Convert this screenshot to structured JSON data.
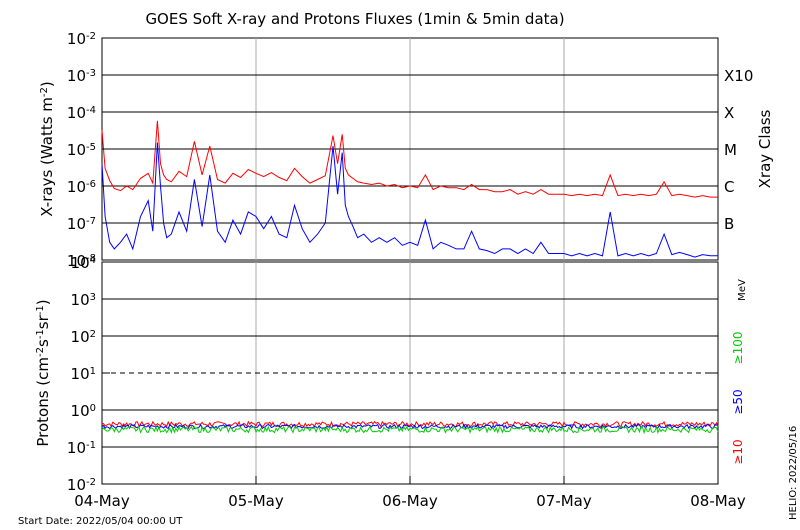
{
  "title": "GOES Soft X-ray and Protons Fluxes   (1min & 5min data)",
  "start_date": "Start Date: 2022/05/04 00:00 UT",
  "helio_stamp": "HELIO: 2022/05/16",
  "colors": {
    "xray_long": "#ff0000",
    "xray_short": "#0000ff",
    "p10": "#ff0000",
    "p50": "#0000ff",
    "p100": "#00cc00",
    "grid_day": "#aaaaaa"
  },
  "chart_data": [
    {
      "type": "line",
      "panel": "xrays",
      "ylabel_prefix": "X-rays (Watts m",
      "ylabel_sup": "-2",
      "ylabel_suffix": ")",
      "yscale": "log",
      "ylim": [
        1e-08,
        0.01
      ],
      "y_tick_exponents": [
        "-8",
        "-7",
        "-6",
        "-5",
        "-4",
        "-3",
        "-2"
      ],
      "xlim": [
        "2022-05-04",
        "2022-05-08"
      ],
      "x_tick_labels": [
        "04-May",
        "05-May",
        "06-May",
        "07-May",
        "08-May"
      ],
      "right_axis_title": "Xray Class",
      "class_labels": [
        {
          "label": "B",
          "value": 1e-07
        },
        {
          "label": "C",
          "value": 1e-06
        },
        {
          "label": "M",
          "value": 1e-05
        },
        {
          "label": "X",
          "value": 0.0001
        },
        {
          "label": "X10",
          "value": 0.001
        }
      ],
      "series": [
        {
          "id": "long",
          "x_days": [
            0.0,
            0.02,
            0.05,
            0.08,
            0.12,
            0.16,
            0.2,
            0.25,
            0.3,
            0.33,
            0.36,
            0.38,
            0.4,
            0.42,
            0.45,
            0.5,
            0.55,
            0.6,
            0.65,
            0.7,
            0.75,
            0.8,
            0.85,
            0.9,
            0.95,
            1.0,
            1.05,
            1.1,
            1.15,
            1.2,
            1.25,
            1.3,
            1.35,
            1.4,
            1.45,
            1.5,
            1.53,
            1.56,
            1.58,
            1.6,
            1.63,
            1.66,
            1.7,
            1.75,
            1.8,
            1.85,
            1.9,
            1.95,
            2.0,
            2.05,
            2.1,
            2.15,
            2.2,
            2.25,
            2.3,
            2.35,
            2.4,
            2.45,
            2.5,
            2.55,
            2.6,
            2.65,
            2.7,
            2.75,
            2.8,
            2.85,
            2.9,
            2.95,
            3.0,
            3.05,
            3.1,
            3.15,
            3.2,
            3.25,
            3.3,
            3.35,
            3.4,
            3.45,
            3.5,
            3.55,
            3.6,
            3.65,
            3.7,
            3.75,
            3.8,
            3.85,
            3.9,
            3.95,
            4.0
          ],
          "values": [
            3.2e-05,
            3e-06,
            1.4e-06,
            8.5e-07,
            7.5e-07,
            1e-06,
            8e-07,
            1.6e-06,
            2.2e-06,
            1.2e-06,
            5.8e-05,
            4e-06,
            2e-06,
            1.5e-06,
            1.3e-06,
            2.5e-06,
            1.8e-06,
            1.6e-05,
            2e-06,
            1.2e-05,
            1.5e-06,
            1.2e-06,
            2.2e-06,
            1.7e-06,
            2.8e-06,
            2.2e-06,
            1.8e-06,
            2.3e-06,
            1.7e-06,
            1.4e-06,
            3e-06,
            1.8e-06,
            1.2e-06,
            1.5e-06,
            1.9e-06,
            2.3e-05,
            4e-06,
            2.5e-05,
            3e-06,
            2e-06,
            1.6e-06,
            1.3e-06,
            1.2e-06,
            1.1e-06,
            1.2e-06,
            1e-06,
            1.1e-06,
            9e-07,
            1e-06,
            9e-07,
            2e-06,
            8e-07,
            1e-06,
            9e-07,
            9e-07,
            8e-07,
            1.1e-06,
            8e-07,
            8e-07,
            7e-07,
            7e-07,
            8e-07,
            6e-07,
            7e-07,
            6e-07,
            8e-07,
            6e-07,
            6e-07,
            6e-07,
            5.5e-07,
            6e-07,
            5.5e-07,
            6e-07,
            5.5e-07,
            2e-06,
            5.5e-07,
            6e-07,
            5.5e-07,
            6e-07,
            5.5e-07,
            6e-07,
            1.3e-06,
            5.5e-07,
            6e-07,
            5.5e-07,
            5e-07,
            5.5e-07,
            5e-07,
            5e-07
          ]
        },
        {
          "id": "short",
          "x_days": [
            0.0,
            0.02,
            0.05,
            0.08,
            0.12,
            0.16,
            0.2,
            0.25,
            0.3,
            0.33,
            0.36,
            0.38,
            0.4,
            0.42,
            0.45,
            0.5,
            0.55,
            0.6,
            0.65,
            0.7,
            0.75,
            0.8,
            0.85,
            0.9,
            0.95,
            1.0,
            1.05,
            1.1,
            1.15,
            1.2,
            1.25,
            1.3,
            1.35,
            1.4,
            1.45,
            1.5,
            1.53,
            1.56,
            1.58,
            1.6,
            1.63,
            1.66,
            1.7,
            1.75,
            1.8,
            1.85,
            1.9,
            1.95,
            2.0,
            2.05,
            2.1,
            2.15,
            2.2,
            2.25,
            2.3,
            2.35,
            2.4,
            2.45,
            2.5,
            2.55,
            2.6,
            2.65,
            2.7,
            2.75,
            2.8,
            2.85,
            2.9,
            2.95,
            3.0,
            3.05,
            3.1,
            3.15,
            3.2,
            3.25,
            3.3,
            3.35,
            3.4,
            3.45,
            3.5,
            3.55,
            3.6,
            3.65,
            3.7,
            3.75,
            3.8,
            3.85,
            3.9,
            3.95,
            4.0
          ],
          "values": [
            4e-06,
            1.5e-07,
            3e-08,
            2e-08,
            3e-08,
            5e-08,
            2e-08,
            1.5e-07,
            4e-07,
            6e-08,
            1.5e-05,
            1e-06,
            1e-07,
            4e-08,
            5e-08,
            2e-07,
            6e-08,
            1.5e-06,
            8e-08,
            2e-06,
            6e-08,
            3e-08,
            1.2e-07,
            5e-08,
            2e-07,
            1.5e-07,
            7e-08,
            1.5e-07,
            5e-08,
            4e-08,
            3e-07,
            7e-08,
            3e-08,
            5e-08,
            1e-07,
            1.2e-05,
            6e-07,
            8e-06,
            3e-07,
            1.5e-07,
            8e-08,
            4e-08,
            5e-08,
            3e-08,
            4e-08,
            3e-08,
            4e-08,
            2.5e-08,
            3e-08,
            2.5e-08,
            1.2e-07,
            2e-08,
            3e-08,
            2.5e-08,
            2e-08,
            2e-08,
            6e-08,
            2e-08,
            1.8e-08,
            1.5e-08,
            2e-08,
            2e-08,
            1.5e-08,
            2e-08,
            1.5e-08,
            3e-08,
            1.5e-08,
            1.5e-08,
            1.5e-08,
            1.3e-08,
            1.5e-08,
            1.3e-08,
            1.5e-08,
            1.3e-08,
            2e-07,
            1.3e-08,
            1.5e-08,
            1.3e-08,
            1.5e-08,
            1.3e-08,
            1.5e-08,
            5e-08,
            1.4e-08,
            1.6e-08,
            1.4e-08,
            1.2e-08,
            1.4e-08,
            1.3e-08,
            1.3e-08
          ]
        }
      ]
    },
    {
      "type": "line",
      "panel": "protons",
      "ylabel_prefix": "Protons (cm",
      "ylabel_sup1": "-2",
      "ylabel_mid1": "s",
      "ylabel_sup2": "-1",
      "ylabel_mid2": "sr",
      "ylabel_sup3": "-1",
      "ylabel_suffix": ")",
      "yscale": "log",
      "ylim": [
        0.01,
        10000
      ],
      "y_tick_exponents": [
        "-2",
        "-1",
        "0",
        "1",
        "2",
        "3",
        "4"
      ],
      "xlim": [
        "2022-05-04",
        "2022-05-08"
      ],
      "x_tick_labels": [
        "04-May",
        "05-May",
        "06-May",
        "07-May",
        "08-May"
      ],
      "dashed_threshold": 10,
      "right_labels": [
        {
          "label": "MeV",
          "color": "#000000"
        },
        {
          "label": "≥100",
          "color": "#00cc00"
        },
        {
          "label": "≥50",
          "color": "#0000ff"
        },
        {
          "label": "≥10",
          "color": "#ff0000"
        }
      ],
      "series": [
        {
          "id": "p10",
          "level": 0.42,
          "spread": 0.15
        },
        {
          "id": "p50",
          "level": 0.36,
          "spread": 0.12
        },
        {
          "id": "p100",
          "level": 0.3,
          "spread": 0.18
        }
      ]
    }
  ]
}
